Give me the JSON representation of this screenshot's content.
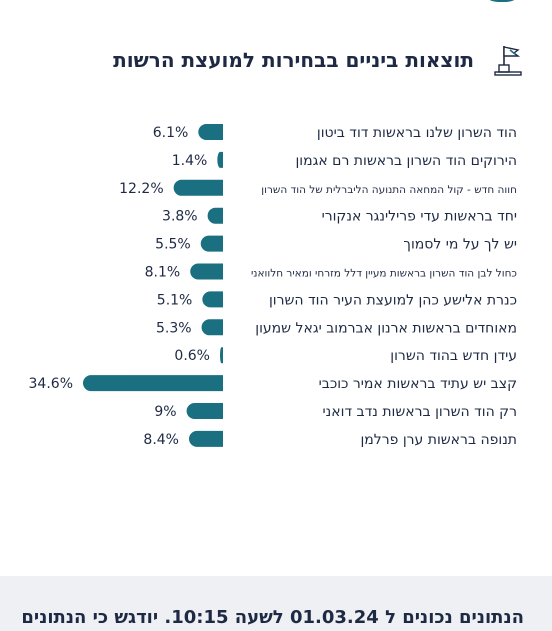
{
  "title": "תוצאות ביניים בבחירות למועצת הרשות",
  "header_icon": "flag-podium-icon",
  "colors": {
    "bar": "#1a6f80",
    "text": "#1e2a44",
    "footer_bg": "#eef0f4"
  },
  "footer_note": "הנתונים נכונים ל 01.03.24 לשעה 10:15. יודגש כי הנתונים",
  "chart_data": {
    "type": "bar",
    "orientation": "horizontal",
    "value_suffix": "%",
    "categories": [
      "הוד השרון שלנו בראשות דוד ביטון",
      "הירוקים הוד השרון בראשות רם אגמון",
      "חווה חדש - קול המחאה התנועה הליברלית של הוד השרון",
      "יחד בראשות עדי פרילינגר אנקורי",
      "יש לך על מי לסמוך",
      "כחול לבן הוד השרון בראשות מעיין דלל מזרחי ומאיר חלוואני",
      "כנרת אלישע כהן למועצת העיר הוד השרון",
      "מאוחדים בראשות ארנון אברמוב יגאל שמעון",
      "עידן חדש בהוד השרון",
      "קצב יש עתיד בראשות אמיר כוכבי",
      "רק הוד השרון בראשות נדב דואני",
      "תנופה בראשות ערן פרלמן"
    ],
    "values": [
      6.1,
      1.4,
      12.2,
      3.8,
      5.5,
      8.1,
      5.1,
      5.3,
      0.6,
      34.6,
      9,
      8.4
    ],
    "value_labels": [
      "6.1%",
      "1.4%",
      "12.2%",
      "3.8%",
      "5.5%",
      "8.1%",
      "5.1%",
      "5.3%",
      "0.6%",
      "34.6%",
      "9%",
      "8.4%"
    ]
  }
}
